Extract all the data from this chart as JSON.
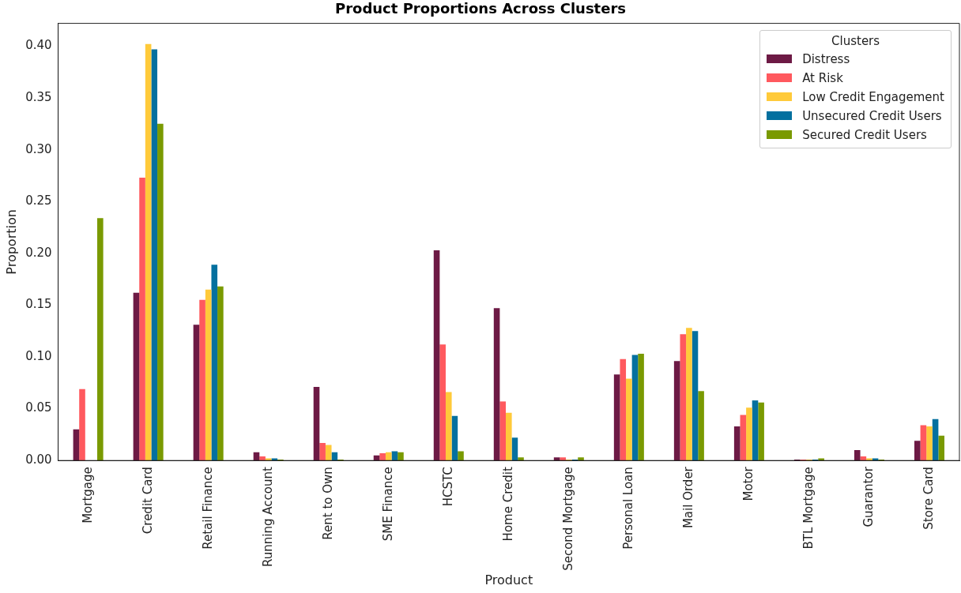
{
  "chart_data": {
    "type": "bar",
    "title": "Product Proportions Across Clusters",
    "xlabel": "Product",
    "ylabel": "Proportion",
    "legend_title": "Clusters",
    "legend": "top right",
    "grid": false,
    "categories": [
      "Mortgage",
      "Credit Card",
      "Retail Finance",
      "Running Account",
      "Rent to Own",
      "SME Finance",
      "HCSTC",
      "Home Credit",
      "Second Mortgage",
      "Personal Loan",
      "Mail Order",
      "Motor",
      "BTL Mortgage",
      "Guarantor",
      "Store Card"
    ],
    "ylim": [
      0,
      0.422
    ],
    "yticks": [
      {
        "value": 0,
        "label": "0.00"
      },
      {
        "value": 0.05,
        "label": "0.05"
      },
      {
        "value": 0.1,
        "label": "0.10"
      },
      {
        "value": 0.15,
        "label": "0.15"
      },
      {
        "value": 0.2,
        "label": "0.20"
      },
      {
        "value": 0.25,
        "label": "0.25"
      },
      {
        "value": 0.3,
        "label": "0.30"
      },
      {
        "value": 0.35,
        "label": "0.35"
      },
      {
        "value": 0.4,
        "label": "0.40"
      }
    ],
    "series": [
      {
        "name": "Distress",
        "color": "#6d1a45",
        "values": [
          0.03,
          0.162,
          0.131,
          0.008,
          0.071,
          0.005,
          0.203,
          0.147,
          0.003,
          0.083,
          0.096,
          0.033,
          0.001,
          0.01,
          0.019
        ]
      },
      {
        "name": "At Risk",
        "color": "#ff595e",
        "values": [
          0.069,
          0.273,
          0.155,
          0.004,
          0.017,
          0.007,
          0.112,
          0.057,
          0.003,
          0.098,
          0.122,
          0.044,
          0.001,
          0.004,
          0.034
        ]
      },
      {
        "name": "Low Credit Engagement",
        "color": "#ffca3a",
        "values": [
          0,
          0.402,
          0.165,
          0.002,
          0.015,
          0.008,
          0.066,
          0.046,
          0.001,
          0.079,
          0.128,
          0.051,
          0.001,
          0.002,
          0.033
        ]
      },
      {
        "name": "Unsecured Credit Users",
        "color": "#04709f",
        "values": [
          0,
          0.397,
          0.189,
          0.002,
          0.008,
          0.009,
          0.043,
          0.022,
          0.001,
          0.102,
          0.125,
          0.058,
          0.001,
          0.002,
          0.04
        ]
      },
      {
        "name": "Secured Credit Users",
        "color": "#7a9a01",
        "values": [
          0.234,
          0.325,
          0.168,
          0.001,
          0.001,
          0.008,
          0.009,
          0.003,
          0.003,
          0.103,
          0.067,
          0.056,
          0.002,
          0.001,
          0.024
        ]
      }
    ]
  }
}
